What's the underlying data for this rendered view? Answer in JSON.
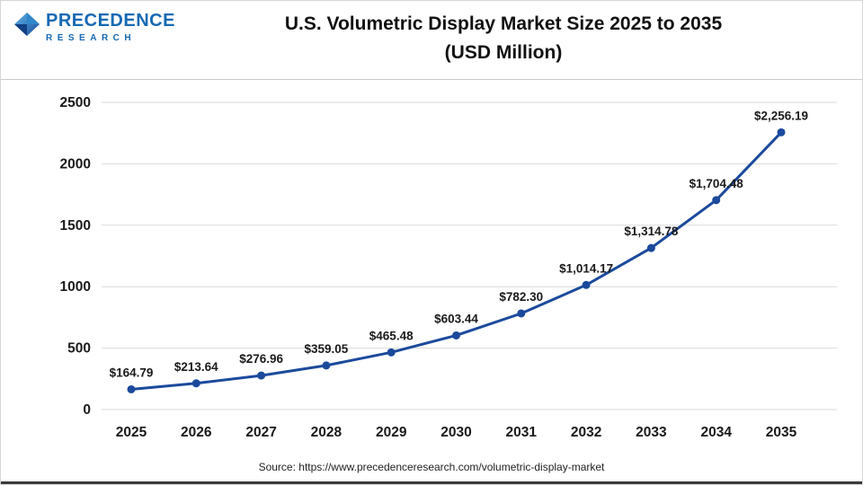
{
  "logo": {
    "name": "PRECEDENCE",
    "subname": "RESEARCH",
    "color": "#1569b3"
  },
  "header": {
    "title_line1": "U.S. Volumetric Display Market Size 2025 to 2035",
    "title_line2": "(USD Million)"
  },
  "footer": {
    "source": "Source: https://www.precedenceresearch.com/volumetric-display-market"
  },
  "chart_data": {
    "type": "line",
    "title": "U.S. Volumetric Display Market Size 2025 to 2035 (USD Million)",
    "categories": [
      "2025",
      "2026",
      "2027",
      "2028",
      "2029",
      "2030",
      "2031",
      "2032",
      "2033",
      "2034",
      "2035"
    ],
    "values": [
      164.79,
      213.64,
      276.96,
      359.05,
      465.48,
      603.44,
      782.3,
      1014.17,
      1314.78,
      1704.48,
      2256.19
    ],
    "point_labels": [
      "$164.79",
      "$213.64",
      "$276.96",
      "$359.05",
      "$465.48",
      "$603.44",
      "$782.30",
      "$1,014.17",
      "$1,314.78",
      "$1,704.48",
      "$2,256.19"
    ],
    "y_ticks": [
      0,
      500,
      1000,
      1500,
      2000,
      2500
    ],
    "ylim": [
      0,
      2500
    ],
    "xlabel": "",
    "ylabel": "",
    "grid": true,
    "legend": "none",
    "line_color": "#1b4a9c",
    "marker_color": "#1b4a9c",
    "grid_color": "#d9d9d9",
    "label_color": "#1a1a1a",
    "tick_color": "#1a1a1a"
  }
}
